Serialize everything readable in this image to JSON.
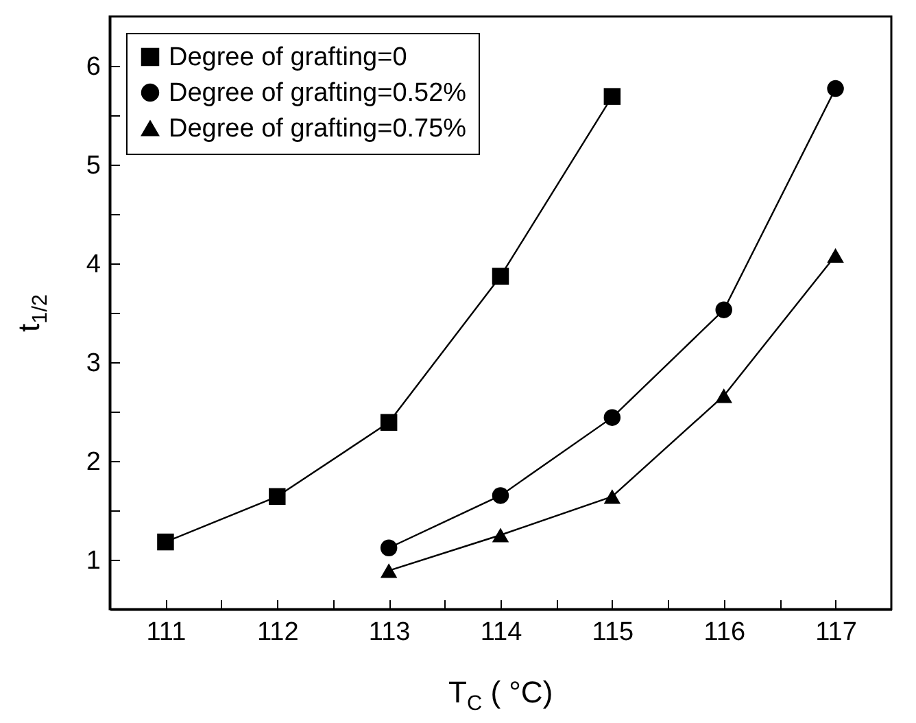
{
  "chart_data": {
    "type": "line",
    "xlabel": "T$_{C}$ ( °C)",
    "ylabel": "t$_{1/2}$",
    "xlim": [
      110.5,
      117.5
    ],
    "ylim": [
      0.5,
      6.5
    ],
    "xticks": [
      111,
      {
        "value": 111.5,
        "label": null
      },
      112,
      {
        "value": 112.5,
        "label": null
      },
      113,
      {
        "value": 113.5,
        "label": null
      },
      114,
      {
        "value": 114.5,
        "label": null
      },
      115,
      {
        "value": 115.5,
        "label": null
      },
      116,
      {
        "value": 116.5,
        "label": null
      },
      117
    ],
    "yticks": [
      1,
      {
        "value": 1.5,
        "label": null
      },
      2,
      {
        "value": 2.5,
        "label": null
      },
      3,
      {
        "value": 3.5,
        "label": null
      },
      4,
      {
        "value": 4.5,
        "label": null
      },
      5,
      {
        "value": 5.5,
        "label": null
      },
      6
    ],
    "grid": false,
    "legend": "top left",
    "line_style": "solid",
    "series": [
      {
        "name": "Degree of grafting=0",
        "color": "#000000",
        "marker": "square",
        "x": [
          111,
          112,
          113,
          114,
          115
        ],
        "values": [
          1.18,
          1.64,
          2.39,
          3.87,
          5.69
        ]
      },
      {
        "name": "Degree of grafting=0.52%",
        "color": "#000000",
        "marker": "circle",
        "x": [
          113,
          114,
          115,
          116,
          117
        ],
        "values": [
          1.12,
          1.65,
          2.44,
          3.53,
          5.77
        ]
      },
      {
        "name": "Degree of grafting=0.75%",
        "color": "#000000",
        "marker": "triangle",
        "x": [
          113,
          114,
          115,
          116,
          117
        ],
        "values": [
          0.89,
          1.25,
          1.64,
          2.66,
          4.08
        ]
      }
    ]
  }
}
